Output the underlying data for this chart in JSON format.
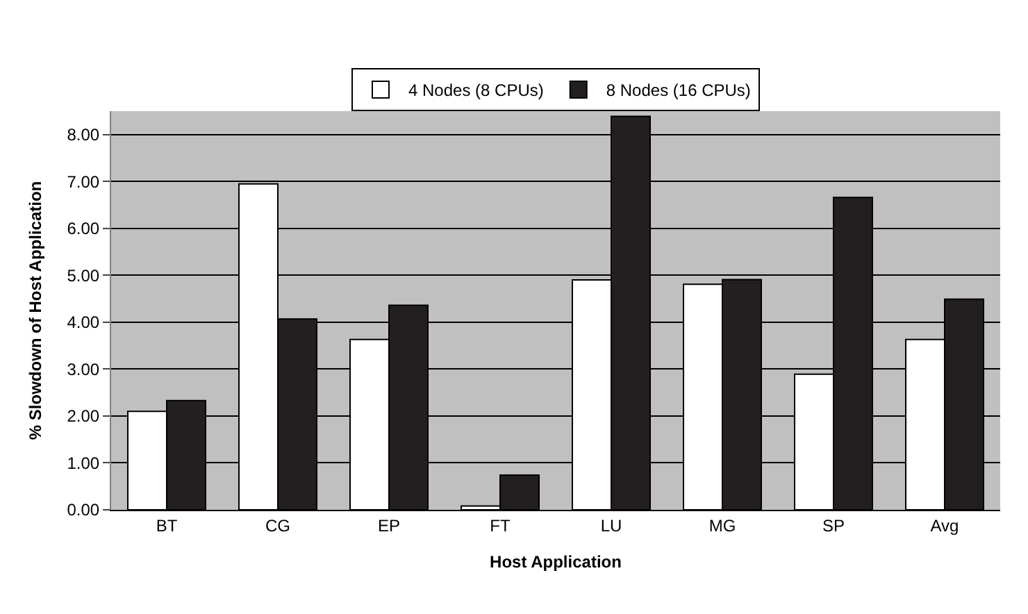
{
  "chart_data": {
    "type": "bar",
    "xlabel": "Host Application",
    "ylabel": "% Slowdown of Host Application",
    "categories": [
      "BT",
      "CG",
      "EP",
      "FT",
      "LU",
      "MG",
      "SP",
      "Avg"
    ],
    "series": [
      {
        "name": "4 Nodes (8 CPUs)",
        "color": "#ffffff",
        "values": [
          2.1,
          6.95,
          3.63,
          0.08,
          4.9,
          4.81,
          2.89,
          3.63
        ]
      },
      {
        "name": "8 Nodes (16 CPUs)",
        "color": "#231f20",
        "values": [
          2.33,
          4.07,
          4.36,
          0.74,
          8.39,
          4.91,
          6.66,
          4.49
        ]
      }
    ],
    "ylim": [
      0,
      8.5
    ],
    "yticks": [
      {
        "value": 0,
        "label": "0.00"
      },
      {
        "value": 1,
        "label": "1.00"
      },
      {
        "value": 2,
        "label": "2.00"
      },
      {
        "value": 3,
        "label": "3.00"
      },
      {
        "value": 4,
        "label": "4.00"
      },
      {
        "value": 5,
        "label": "5.00"
      },
      {
        "value": 6,
        "label": "6.00"
      },
      {
        "value": 7,
        "label": "7.00"
      },
      {
        "value": 8,
        "label": "8.00"
      }
    ],
    "grid": "y",
    "legend": "top"
  }
}
